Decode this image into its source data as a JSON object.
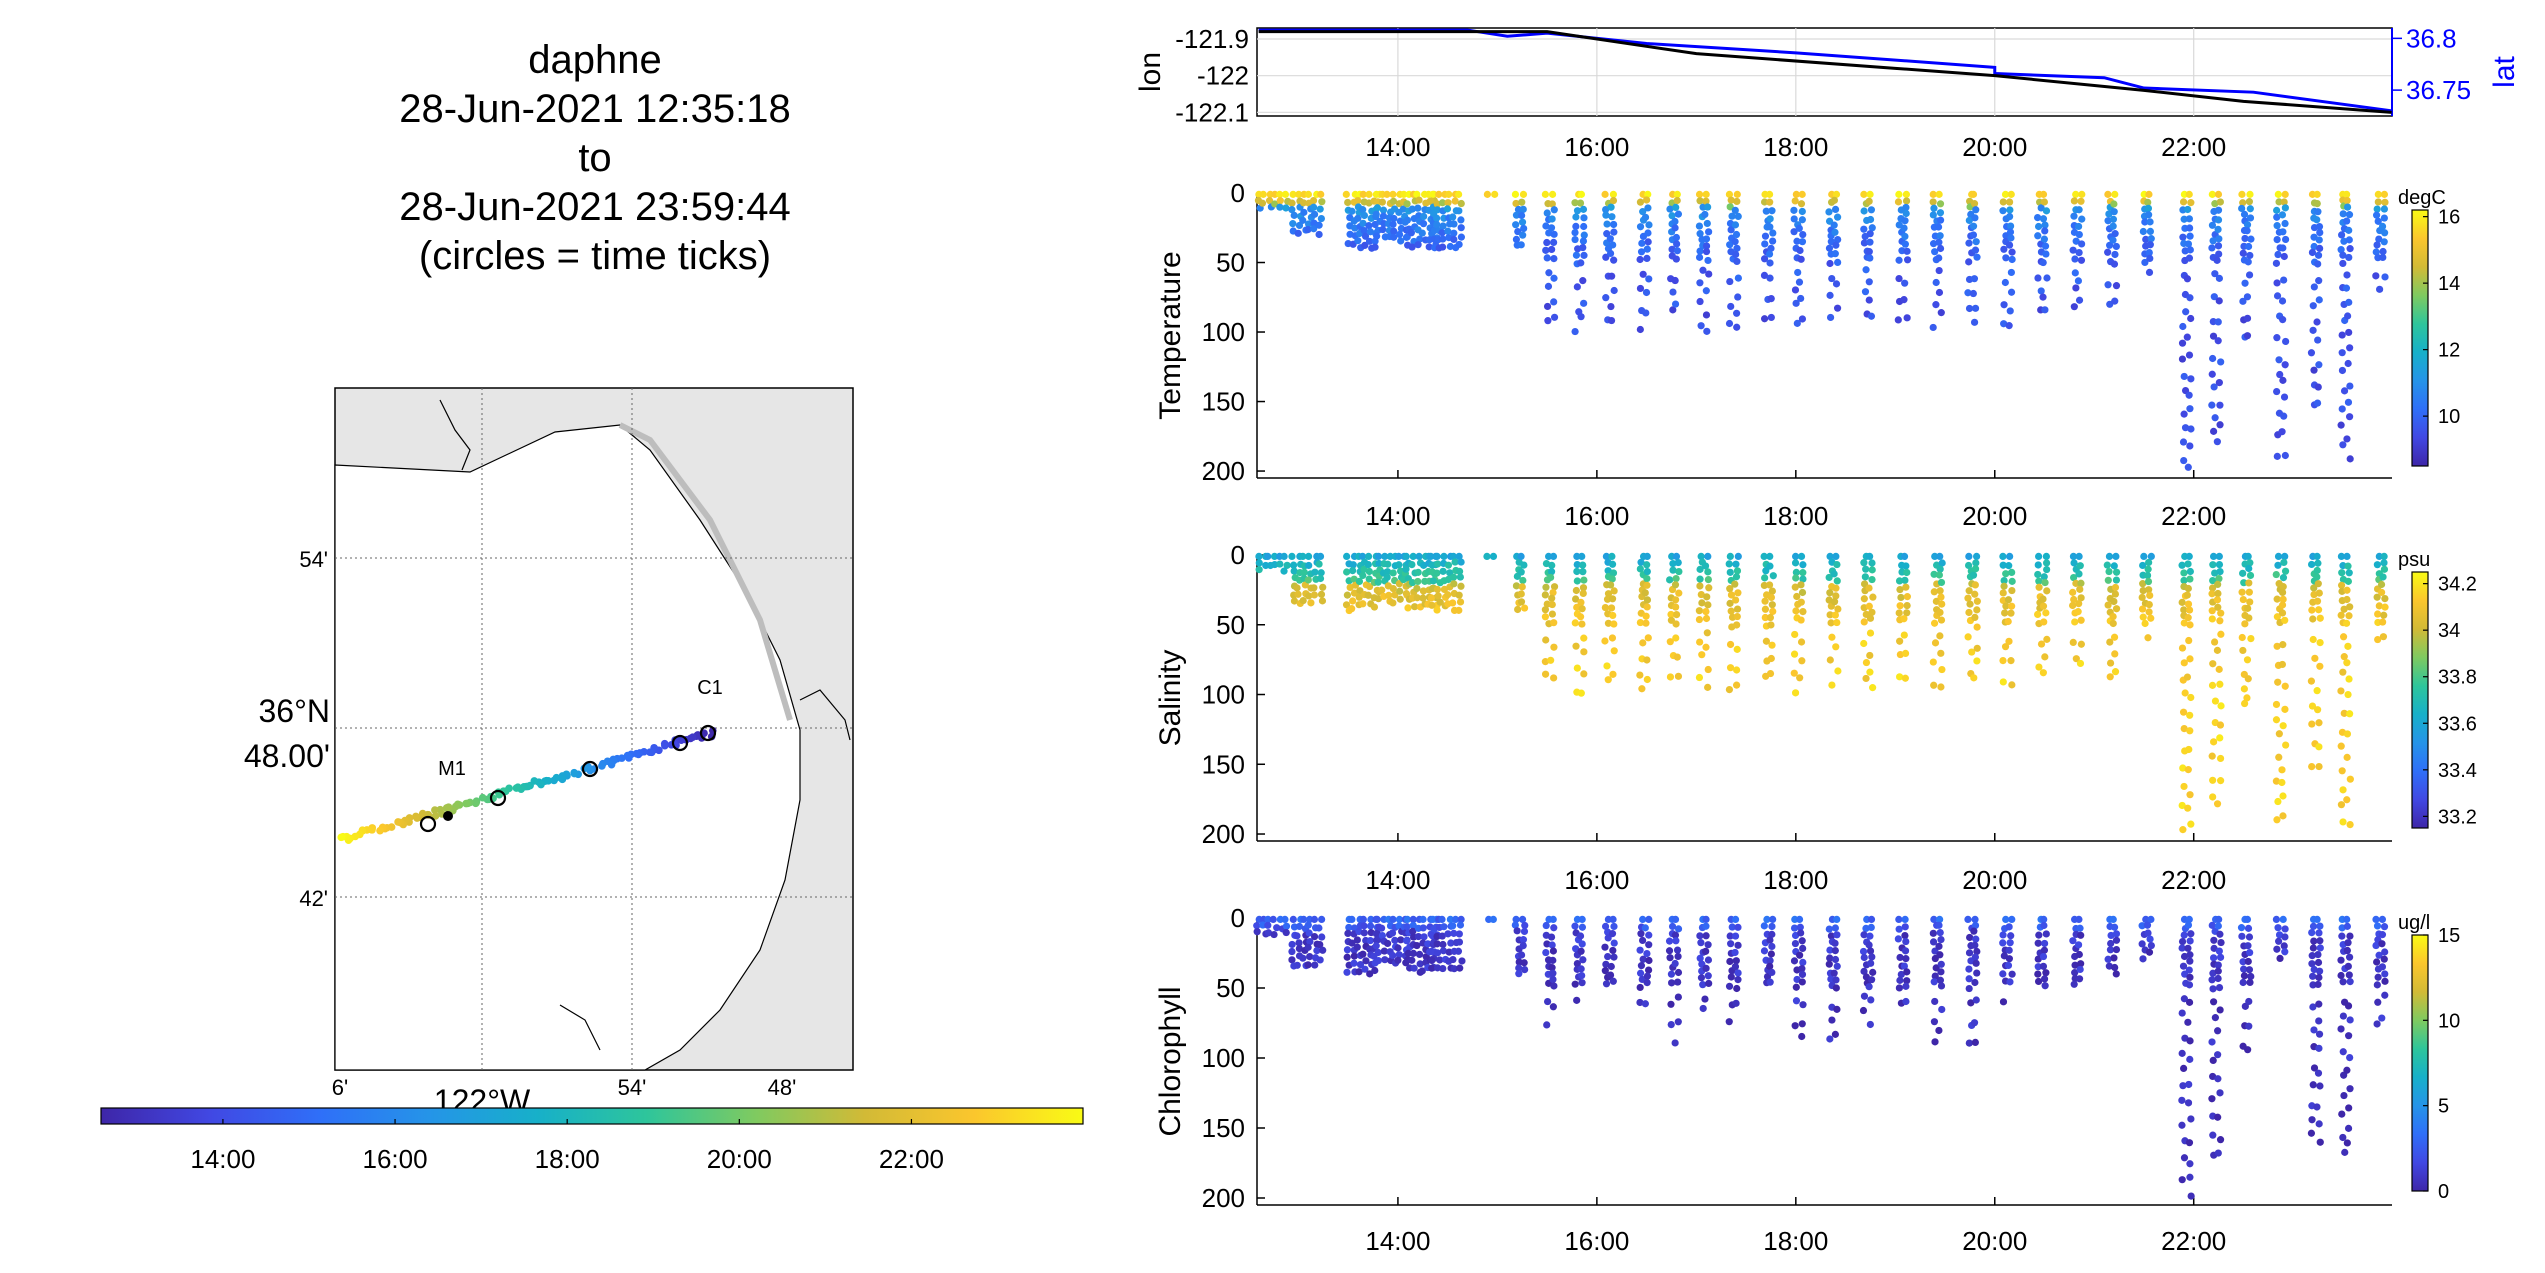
{
  "title": {
    "lines": [
      "daphne",
      "28-Jun-2021 12:35:18",
      "to",
      "28-Jun-2021 23:59:44",
      "(circles = time ticks)"
    ]
  },
  "colors": {
    "map_land": "#e6e6e6",
    "lon_line": "#000000",
    "lat_line": "#0000ff",
    "parula": [
      "#3e26a8",
      "#4148e3",
      "#2f6ff8",
      "#2594e8",
      "#17b0c9",
      "#2ec59b",
      "#7fca60",
      "#d2ba36",
      "#fbc62d",
      "#f9fb15"
    ]
  },
  "map": {
    "stations": [
      "C1",
      "M1"
    ],
    "lat_ticks": [
      "54'",
      "36°N 48.00'",
      "42'"
    ],
    "lon_ticks": [
      "6'",
      "122°W",
      "54'",
      "48'"
    ],
    "colorbar_ticks": [
      "14:00",
      "16:00",
      "18:00",
      "20:00",
      "22:00"
    ]
  },
  "chart_data": [
    {
      "type": "line",
      "name": "position",
      "ylabel": "lon",
      "y2label": "lat",
      "xlim": [
        "12:35",
        "23:59"
      ],
      "xticks": [
        "14:00",
        "16:00",
        "18:00",
        "20:00",
        "22:00"
      ],
      "yticks": [
        "-121.9",
        "-122",
        "-122.1"
      ],
      "y2ticks": [
        "36.8",
        "36.75"
      ],
      "ylim": [
        -122.11,
        -121.87
      ],
      "y2lim": [
        36.725,
        36.81
      ],
      "series": [
        {
          "name": "lon",
          "x": [
            12.6,
            15.5,
            17.0,
            19.0,
            20.0,
            21.5,
            22.5,
            23.99
          ],
          "y": [
            -121.88,
            -121.88,
            -121.94,
            -121.98,
            -122.0,
            -122.04,
            -122.07,
            -122.1
          ]
        },
        {
          "name": "lat",
          "x": [
            12.6,
            14.7,
            15.1,
            15.5,
            16.5,
            18.0,
            20.0,
            20.0,
            21.1,
            21.5,
            22.6,
            23.99
          ],
          "y": [
            36.808,
            36.808,
            36.802,
            36.805,
            36.795,
            36.786,
            36.772,
            36.766,
            36.762,
            36.752,
            36.748,
            36.73
          ]
        }
      ]
    },
    {
      "type": "scatter",
      "name": "temperature",
      "ylabel": "Temperature",
      "unit": "degC",
      "ylim": [
        205,
        0
      ],
      "yticks": [
        "0",
        "50",
        "100",
        "150",
        "200"
      ],
      "xticks": [
        "14:00",
        "16:00",
        "18:00",
        "20:00",
        "22:00"
      ],
      "clim": [
        8.5,
        16.2
      ],
      "cticks": [
        "10",
        "12",
        "14",
        "16"
      ],
      "surface": 16,
      "bottom": 9.5,
      "thermocline": 10,
      "profiles": [
        {
          "t": 12.6,
          "max": 12
        },
        {
          "t": 12.95,
          "max": 30
        },
        {
          "t": 13.5,
          "max": 40
        },
        {
          "t": 13.8,
          "max": 35
        },
        {
          "t": 14.1,
          "max": 40
        },
        {
          "t": 14.35,
          "max": 40
        },
        {
          "t": 14.9,
          "max": 5
        },
        {
          "t": 15.2,
          "max": 40
        },
        {
          "t": 15.5,
          "max": 95
        },
        {
          "t": 15.8,
          "max": 100
        },
        {
          "t": 16.1,
          "max": 95
        },
        {
          "t": 16.45,
          "max": 100
        },
        {
          "t": 16.75,
          "max": 90
        },
        {
          "t": 17.05,
          "max": 100
        },
        {
          "t": 17.35,
          "max": 100
        },
        {
          "t": 17.7,
          "max": 95
        },
        {
          "t": 18.0,
          "max": 100
        },
        {
          "t": 18.35,
          "max": 95
        },
        {
          "t": 18.7,
          "max": 100
        },
        {
          "t": 19.05,
          "max": 95
        },
        {
          "t": 19.4,
          "max": 100
        },
        {
          "t": 19.75,
          "max": 95
        },
        {
          "t": 20.1,
          "max": 100
        },
        {
          "t": 20.45,
          "max": 90
        },
        {
          "t": 20.8,
          "max": 85
        },
        {
          "t": 21.15,
          "max": 90
        },
        {
          "t": 21.5,
          "max": 60
        },
        {
          "t": 21.9,
          "max": 200
        },
        {
          "t": 22.2,
          "max": 180
        },
        {
          "t": 22.5,
          "max": 110
        },
        {
          "t": 22.85,
          "max": 195
        },
        {
          "t": 23.2,
          "max": 160
        },
        {
          "t": 23.5,
          "max": 195
        },
        {
          "t": 23.85,
          "max": 70
        }
      ]
    },
    {
      "type": "scatter",
      "name": "salinity",
      "ylabel": "Salinity",
      "unit": "psu",
      "ylim": [
        205,
        0
      ],
      "yticks": [
        "0",
        "50",
        "100",
        "150",
        "200"
      ],
      "xticks": [
        "14:00",
        "16:00",
        "18:00",
        "20:00",
        "22:00"
      ],
      "clim": [
        33.15,
        34.25
      ],
      "cticks": [
        "33.2",
        "33.4",
        "33.6",
        "33.8",
        "34",
        "34.2"
      ],
      "surface": 33.6,
      "bottom": 34.15,
      "thermocline": 20,
      "profiles": [
        {
          "t": 12.6,
          "max": 12
        },
        {
          "t": 12.95,
          "max": 35
        },
        {
          "t": 13.5,
          "max": 40
        },
        {
          "t": 13.8,
          "max": 35
        },
        {
          "t": 14.1,
          "max": 40
        },
        {
          "t": 14.35,
          "max": 40
        },
        {
          "t": 14.9,
          "max": 5
        },
        {
          "t": 15.2,
          "max": 40
        },
        {
          "t": 15.5,
          "max": 95
        },
        {
          "t": 15.8,
          "max": 100
        },
        {
          "t": 16.1,
          "max": 95
        },
        {
          "t": 16.45,
          "max": 100
        },
        {
          "t": 16.75,
          "max": 90
        },
        {
          "t": 17.05,
          "max": 100
        },
        {
          "t": 17.35,
          "max": 100
        },
        {
          "t": 17.7,
          "max": 95
        },
        {
          "t": 18.0,
          "max": 100
        },
        {
          "t": 18.35,
          "max": 95
        },
        {
          "t": 18.7,
          "max": 100
        },
        {
          "t": 19.05,
          "max": 95
        },
        {
          "t": 19.4,
          "max": 100
        },
        {
          "t": 19.75,
          "max": 95
        },
        {
          "t": 20.1,
          "max": 100
        },
        {
          "t": 20.45,
          "max": 90
        },
        {
          "t": 20.8,
          "max": 85
        },
        {
          "t": 21.15,
          "max": 90
        },
        {
          "t": 21.5,
          "max": 60
        },
        {
          "t": 21.9,
          "max": 200
        },
        {
          "t": 22.2,
          "max": 180
        },
        {
          "t": 22.5,
          "max": 110
        },
        {
          "t": 22.85,
          "max": 195
        },
        {
          "t": 23.2,
          "max": 160
        },
        {
          "t": 23.5,
          "max": 195
        },
        {
          "t": 23.85,
          "max": 70
        }
      ]
    },
    {
      "type": "scatter",
      "name": "chlorophyll",
      "ylabel": "Chlorophyll",
      "unit": "ug/l",
      "ylim": [
        205,
        0
      ],
      "yticks": [
        "0",
        "50",
        "100",
        "150",
        "200"
      ],
      "xticks": [
        "14:00",
        "16:00",
        "18:00",
        "20:00",
        "22:00"
      ],
      "clim": [
        0,
        15
      ],
      "cticks": [
        "0",
        "5",
        "10",
        "15"
      ],
      "surface": 3,
      "bottom": 0.5,
      "thermocline": 8,
      "profiles": [
        {
          "t": 12.6,
          "max": 12
        },
        {
          "t": 12.95,
          "max": 35
        },
        {
          "t": 13.5,
          "max": 40
        },
        {
          "t": 13.8,
          "max": 35
        },
        {
          "t": 14.1,
          "max": 40
        },
        {
          "t": 14.35,
          "max": 40
        },
        {
          "t": 14.9,
          "max": 5
        },
        {
          "t": 15.2,
          "max": 40
        },
        {
          "t": 15.5,
          "max": 80
        },
        {
          "t": 15.8,
          "max": 60
        },
        {
          "t": 16.1,
          "max": 50
        },
        {
          "t": 16.45,
          "max": 70
        },
        {
          "t": 16.75,
          "max": 90
        },
        {
          "t": 17.05,
          "max": 65
        },
        {
          "t": 17.35,
          "max": 75
        },
        {
          "t": 17.7,
          "max": 55
        },
        {
          "t": 18.0,
          "max": 85
        },
        {
          "t": 18.35,
          "max": 95
        },
        {
          "t": 18.7,
          "max": 80
        },
        {
          "t": 19.05,
          "max": 75
        },
        {
          "t": 19.4,
          "max": 90
        },
        {
          "t": 19.75,
          "max": 95
        },
        {
          "t": 20.1,
          "max": 60
        },
        {
          "t": 20.45,
          "max": 55
        },
        {
          "t": 20.8,
          "max": 50
        },
        {
          "t": 21.15,
          "max": 40
        },
        {
          "t": 21.5,
          "max": 30
        },
        {
          "t": 21.9,
          "max": 200
        },
        {
          "t": 22.2,
          "max": 170
        },
        {
          "t": 22.5,
          "max": 105
        },
        {
          "t": 22.85,
          "max": 30
        },
        {
          "t": 23.2,
          "max": 165
        },
        {
          "t": 23.5,
          "max": 170
        },
        {
          "t": 23.85,
          "max": 80
        }
      ]
    },
    {
      "type": "line",
      "name": "track",
      "xlim": [
        "122°12'W",
        "121°44'W"
      ],
      "ylim": [
        "36°37'N",
        "36°58'N"
      ],
      "x": [
        -122.115,
        -121.775
      ],
      "y": [
        36.712,
        36.8
      ],
      "x_is": "lon",
      "y_is": "lat"
    }
  ]
}
